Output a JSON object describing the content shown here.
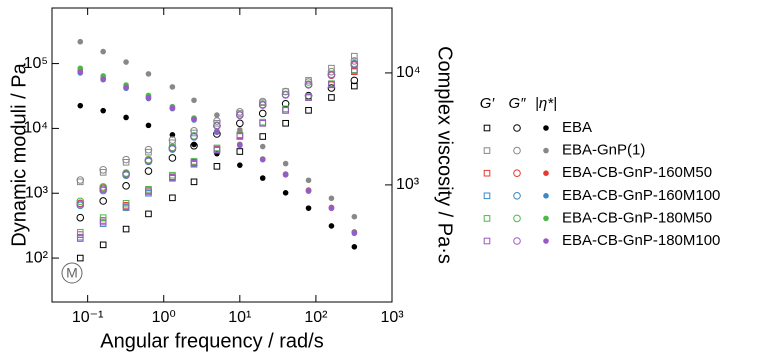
{
  "chart_data": {
    "type": "scatter",
    "xlabel": "Angular frequency / rad/s",
    "ylabel": "Dynamic moduli / Pa",
    "y2label": "Complex viscosity / Pa·s",
    "log_x": true,
    "log_y": true,
    "log_y2": true,
    "xlim": [
      0.034,
      1000
    ],
    "ylim": [
      21,
      720000
    ],
    "y2lim": [
      90,
      38000
    ],
    "xticks": [
      {
        "value": 0.1,
        "label": "10⁻¹"
      },
      {
        "value": 1,
        "label": "10⁰"
      },
      {
        "value": 10,
        "label": "10¹"
      },
      {
        "value": 100,
        "label": "10²"
      },
      {
        "value": 1000,
        "label": "10³"
      }
    ],
    "yticks": [
      {
        "value": 100,
        "label": "10²"
      },
      {
        "value": 1000,
        "label": "10³"
      },
      {
        "value": 10000,
        "label": "10⁴"
      },
      {
        "value": 100000,
        "label": "10⁵"
      }
    ],
    "y2ticks": [
      {
        "value": 1000,
        "label": "10³"
      },
      {
        "value": 10000,
        "label": "10⁴"
      }
    ],
    "legend_headers": [
      "G′",
      "G″",
      "|η*|"
    ],
    "watermark": "M",
    "x": [
      0.08,
      0.16,
      0.32,
      0.63,
      1.3,
      2.5,
      5,
      10,
      20,
      40,
      80,
      160,
      320
    ],
    "series": [
      {
        "name": "EBA",
        "color": "#000000",
        "storage": [
          100,
          160,
          280,
          480,
          850,
          1500,
          2600,
          4400,
          7500,
          12000,
          19000,
          30000,
          45000
        ],
        "loss": [
          420,
          760,
          1300,
          2200,
          3500,
          5400,
          8200,
          12000,
          17000,
          24000,
          32000,
          42000,
          55000
        ],
        "viscosity": [
          5100,
          4600,
          4000,
          3400,
          2800,
          2300,
          1900,
          1500,
          1150,
          850,
          620,
          430,
          280
        ]
      },
      {
        "name": "EBA-GnP(1)",
        "color": "#888888",
        "storage": [
          1500,
          2100,
          3000,
          4300,
          6000,
          8500,
          12000,
          17000,
          25000,
          37000,
          55000,
          85000,
          130000
        ],
        "loss": [
          1600,
          2300,
          3300,
          4700,
          6600,
          9200,
          13000,
          18000,
          26000,
          37000,
          52000,
          75000,
          110000
        ],
        "viscosity": [
          19000,
          15500,
          12500,
          9800,
          7500,
          5700,
          4200,
          3100,
          2200,
          1550,
          1100,
          760,
          520
        ]
      },
      {
        "name": "EBA-CB-GnP-160M50",
        "color": "#e8392f",
        "storage": [
          230,
          380,
          650,
          1100,
          1800,
          3000,
          4800,
          7800,
          12000,
          19000,
          30000,
          47000,
          75000
        ],
        "loss": [
          700,
          1200,
          2000,
          3200,
          5000,
          7600,
          11000,
          16000,
          23000,
          33000,
          47000,
          66000,
          95000
        ],
        "viscosity": [
          10500,
          9000,
          7500,
          6100,
          4900,
          3900,
          3000,
          2300,
          1700,
          1250,
          900,
          630,
          380
        ]
      },
      {
        "name": "EBA-CB-GnP-160M100",
        "color": "#3b88c4",
        "storage": [
          200,
          340,
          600,
          1000,
          1700,
          2800,
          4600,
          7500,
          12000,
          19000,
          30000,
          48000,
          80000
        ],
        "loss": [
          650,
          1100,
          1900,
          3100,
          4800,
          7400,
          11000,
          16000,
          23000,
          33000,
          48000,
          68000,
          100000
        ],
        "viscosity": [
          10000,
          8700,
          7300,
          5900,
          4800,
          3800,
          2950,
          2250,
          1680,
          1230,
          880,
          620,
          370
        ]
      },
      {
        "name": "EBA-CB-GnP-180M50",
        "color": "#4cb848",
        "storage": [
          250,
          420,
          700,
          1150,
          1900,
          3100,
          5000,
          8000,
          12500,
          20000,
          31000,
          49000,
          80000
        ],
        "loss": [
          750,
          1250,
          2050,
          3300,
          5100,
          7700,
          11200,
          16200,
          23500,
          33500,
          48000,
          68000,
          98000
        ],
        "viscosity": [
          11000,
          9400,
          7800,
          6300,
          5000,
          3950,
          3050,
          2300,
          1700,
          1240,
          890,
          620,
          380
        ]
      },
      {
        "name": "EBA-CB-GnP-180M100",
        "color": "#9b59c7",
        "storage": [
          210,
          360,
          620,
          1050,
          1750,
          2900,
          4700,
          7600,
          12000,
          19000,
          30000,
          48000,
          78000
        ],
        "loss": [
          680,
          1150,
          1950,
          3150,
          4900,
          7500,
          11000,
          16000,
          23000,
          33000,
          47000,
          67000,
          97000
        ],
        "viscosity": [
          10200,
          8800,
          7400,
          6000,
          4850,
          3850,
          2980,
          2280,
          1690,
          1235,
          885,
          618,
          375
        ]
      }
    ]
  }
}
